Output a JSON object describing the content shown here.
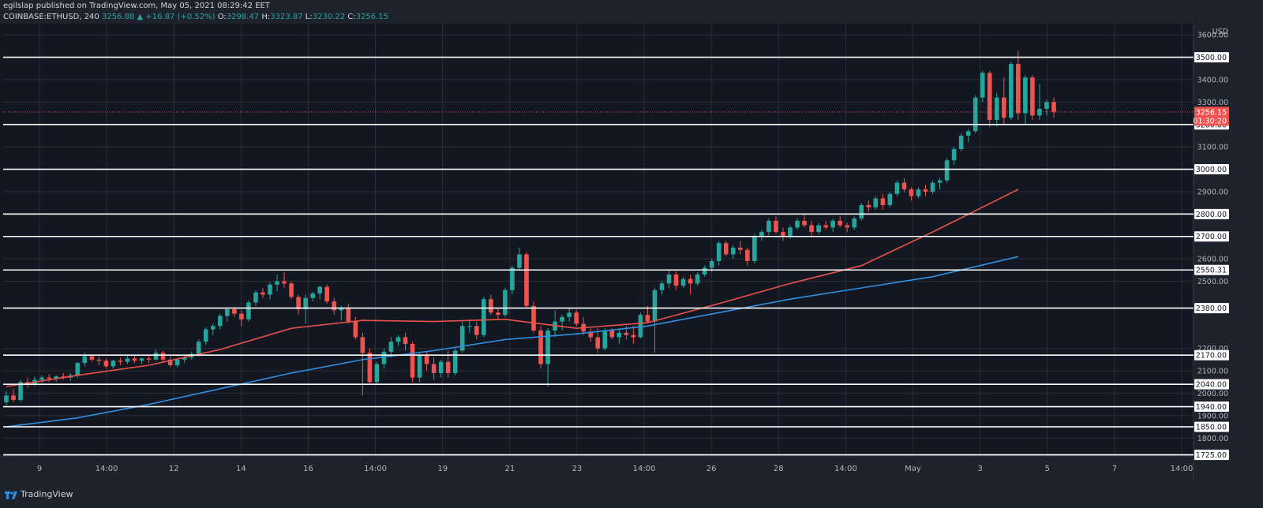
{
  "header": {
    "published": "egilslap published on TradingView.com, May 05, 2021 08:29:42 EET",
    "symbol": "COINBASE:ETHUSD, 240",
    "last": "3256.88",
    "change_arrow": "▲",
    "change": "+16.87 (+0.52%)",
    "o_label": "O:",
    "o_value": "3298.47",
    "h_label": "H:",
    "h_value": "3323.87",
    "l_label": "L:",
    "l_value": "3230.22",
    "c_label": "C:",
    "c_value": "3256.15"
  },
  "footer": {
    "brand": "TradingView",
    "icon": "tradingview-logo-icon"
  },
  "colors": {
    "background": "#131722",
    "up": "#26a69a",
    "down": "#ef5350",
    "ema_red": "#e8524a",
    "ema_blue": "#2f8fe0",
    "level_line": "#ffffff",
    "grid": "#2a2e39"
  },
  "chart_data": {
    "type": "candlestick",
    "symbol": "COINBASE:ETHUSD",
    "interval": "240",
    "y_unit": "USD",
    "ylim": [
      1720,
      3650
    ],
    "x_ticks": [
      "9",
      "14:00",
      "12",
      "14",
      "16",
      "14:00",
      "19",
      "21",
      "23",
      "14:00",
      "26",
      "28",
      "14:00",
      "May",
      "3",
      "5",
      "7",
      "14:00"
    ],
    "y_axis_labels": [
      "3600.00",
      "3400.00",
      "3300.00",
      "3100.00",
      "2900.00",
      "2600.00",
      "2500.00",
      "2200.00",
      "2100.00",
      "2000.00",
      "1900.00",
      "1800.00"
    ],
    "horizontal_levels": [
      3500.0,
      3200.0,
      3000.0,
      2800.0,
      2700.0,
      2550.31,
      2380.0,
      2170.0,
      2040.0,
      1940.0,
      1850.0,
      1725.0
    ],
    "current_price": "3256.15",
    "countdown": "01:30:20",
    "partial_top_label": "USD",
    "candles": [
      [
        1960,
        2010,
        1945,
        1990
      ],
      [
        1990,
        2020,
        1960,
        1970
      ],
      [
        1970,
        2060,
        1960,
        2050
      ],
      [
        2050,
        2070,
        2025,
        2040
      ],
      [
        2040,
        2075,
        2030,
        2060
      ],
      [
        2060,
        2080,
        2045,
        2070
      ],
      [
        2070,
        2085,
        2050,
        2065
      ],
      [
        2065,
        2080,
        2050,
        2075
      ],
      [
        2075,
        2090,
        2060,
        2070
      ],
      [
        2070,
        2090,
        2055,
        2080
      ],
      [
        2080,
        2140,
        2070,
        2135
      ],
      [
        2135,
        2180,
        2120,
        2165
      ],
      [
        2165,
        2175,
        2140,
        2150
      ],
      [
        2150,
        2165,
        2125,
        2145
      ],
      [
        2145,
        2155,
        2110,
        2120
      ],
      [
        2120,
        2150,
        2110,
        2145
      ],
      [
        2145,
        2160,
        2125,
        2140
      ],
      [
        2140,
        2165,
        2130,
        2155
      ],
      [
        2155,
        2165,
        2135,
        2145
      ],
      [
        2145,
        2160,
        2130,
        2155
      ],
      [
        2155,
        2170,
        2135,
        2150
      ],
      [
        2150,
        2195,
        2145,
        2180
      ],
      [
        2180,
        2190,
        2140,
        2150
      ],
      [
        2150,
        2165,
        2115,
        2125
      ],
      [
        2125,
        2155,
        2115,
        2150
      ],
      [
        2150,
        2170,
        2135,
        2160
      ],
      [
        2160,
        2185,
        2150,
        2175
      ],
      [
        2175,
        2240,
        2165,
        2230
      ],
      [
        2230,
        2295,
        2215,
        2285
      ],
      [
        2285,
        2310,
        2260,
        2300
      ],
      [
        2300,
        2355,
        2285,
        2345
      ],
      [
        2345,
        2380,
        2320,
        2375
      ],
      [
        2375,
        2385,
        2340,
        2355
      ],
      [
        2355,
        2370,
        2300,
        2330
      ],
      [
        2330,
        2415,
        2320,
        2405
      ],
      [
        2405,
        2460,
        2390,
        2450
      ],
      [
        2450,
        2470,
        2425,
        2440
      ],
      [
        2440,
        2495,
        2420,
        2485
      ],
      [
        2485,
        2530,
        2455,
        2500
      ],
      [
        2500,
        2540,
        2470,
        2490
      ],
      [
        2490,
        2500,
        2420,
        2430
      ],
      [
        2430,
        2440,
        2350,
        2375
      ],
      [
        2375,
        2440,
        2310,
        2425
      ],
      [
        2425,
        2455,
        2410,
        2445
      ],
      [
        2445,
        2480,
        2420,
        2475
      ],
      [
        2475,
        2485,
        2400,
        2410
      ],
      [
        2410,
        2425,
        2350,
        2370
      ],
      [
        2370,
        2390,
        2325,
        2380
      ],
      [
        2380,
        2400,
        2310,
        2320
      ],
      [
        2320,
        2340,
        2240,
        2250
      ],
      [
        2250,
        2270,
        1990,
        2180
      ],
      [
        2180,
        2200,
        2040,
        2050
      ],
      [
        2050,
        2140,
        2040,
        2130
      ],
      [
        2130,
        2200,
        2110,
        2185
      ],
      [
        2185,
        2250,
        2160,
        2230
      ],
      [
        2230,
        2260,
        2210,
        2250
      ],
      [
        2250,
        2270,
        2190,
        2220
      ],
      [
        2220,
        2230,
        2050,
        2070
      ],
      [
        2070,
        2180,
        2050,
        2170
      ],
      [
        2170,
        2185,
        2100,
        2130
      ],
      [
        2130,
        2160,
        2060,
        2090
      ],
      [
        2090,
        2150,
        2070,
        2140
      ],
      [
        2140,
        2190,
        2070,
        2090
      ],
      [
        2090,
        2200,
        2080,
        2190
      ],
      [
        2190,
        2320,
        2180,
        2300
      ],
      [
        2300,
        2330,
        2270,
        2300
      ],
      [
        2300,
        2320,
        2240,
        2260
      ],
      [
        2260,
        2430,
        2250,
        2420
      ],
      [
        2420,
        2440,
        2350,
        2360
      ],
      [
        2360,
        2380,
        2330,
        2350
      ],
      [
        2350,
        2470,
        2340,
        2460
      ],
      [
        2460,
        2570,
        2440,
        2560
      ],
      [
        2560,
        2650,
        2550,
        2620
      ],
      [
        2620,
        2630,
        2380,
        2390
      ],
      [
        2390,
        2410,
        2270,
        2280
      ],
      [
        2280,
        2300,
        2110,
        2130
      ],
      [
        2130,
        2290,
        2030,
        2280
      ],
      [
        2280,
        2370,
        2250,
        2320
      ],
      [
        2320,
        2350,
        2280,
        2340
      ],
      [
        2340,
        2380,
        2320,
        2360
      ],
      [
        2360,
        2370,
        2300,
        2310
      ],
      [
        2310,
        2340,
        2260,
        2275
      ],
      [
        2275,
        2290,
        2230,
        2250
      ],
      [
        2250,
        2290,
        2180,
        2200
      ],
      [
        2200,
        2290,
        2190,
        2280
      ],
      [
        2280,
        2290,
        2240,
        2250
      ],
      [
        2250,
        2290,
        2220,
        2270
      ],
      [
        2270,
        2300,
        2240,
        2260
      ],
      [
        2260,
        2300,
        2220,
        2250
      ],
      [
        2250,
        2360,
        2245,
        2350
      ],
      [
        2350,
        2390,
        2310,
        2320
      ],
      [
        2320,
        2470,
        2180,
        2460
      ],
      [
        2460,
        2500,
        2440,
        2490
      ],
      [
        2490,
        2550,
        2470,
        2530
      ],
      [
        2530,
        2545,
        2460,
        2480
      ],
      [
        2480,
        2520,
        2470,
        2510
      ],
      [
        2510,
        2530,
        2440,
        2490
      ],
      [
        2490,
        2540,
        2480,
        2530
      ],
      [
        2530,
        2570,
        2520,
        2560
      ],
      [
        2560,
        2600,
        2540,
        2590
      ],
      [
        2590,
        2680,
        2570,
        2670
      ],
      [
        2670,
        2680,
        2610,
        2620
      ],
      [
        2620,
        2660,
        2600,
        2650
      ],
      [
        2650,
        2680,
        2620,
        2640
      ],
      [
        2640,
        2650,
        2570,
        2590
      ],
      [
        2590,
        2710,
        2580,
        2700
      ],
      [
        2700,
        2730,
        2680,
        2720
      ],
      [
        2720,
        2780,
        2700,
        2770
      ],
      [
        2770,
        2790,
        2710,
        2720
      ],
      [
        2720,
        2740,
        2680,
        2700
      ],
      [
        2700,
        2750,
        2690,
        2740
      ],
      [
        2740,
        2780,
        2730,
        2770
      ],
      [
        2770,
        2800,
        2740,
        2750
      ],
      [
        2750,
        2770,
        2700,
        2720
      ],
      [
        2720,
        2760,
        2710,
        2750
      ],
      [
        2750,
        2770,
        2730,
        2740
      ],
      [
        2740,
        2780,
        2720,
        2770
      ],
      [
        2770,
        2790,
        2740,
        2750
      ],
      [
        2750,
        2760,
        2720,
        2740
      ],
      [
        2740,
        2790,
        2730,
        2780
      ],
      [
        2780,
        2850,
        2770,
        2840
      ],
      [
        2840,
        2860,
        2810,
        2830
      ],
      [
        2830,
        2880,
        2820,
        2870
      ],
      [
        2870,
        2890,
        2820,
        2840
      ],
      [
        2840,
        2900,
        2830,
        2890
      ],
      [
        2890,
        2950,
        2880,
        2940
      ],
      [
        2940,
        2960,
        2900,
        2910
      ],
      [
        2910,
        2920,
        2860,
        2880
      ],
      [
        2880,
        2920,
        2870,
        2910
      ],
      [
        2910,
        2930,
        2880,
        2900
      ],
      [
        2900,
        2950,
        2890,
        2940
      ],
      [
        2940,
        2960,
        2910,
        2950
      ],
      [
        2950,
        3050,
        2940,
        3040
      ],
      [
        3040,
        3100,
        3020,
        3090
      ],
      [
        3090,
        3160,
        3080,
        3150
      ],
      [
        3150,
        3180,
        3120,
        3170
      ],
      [
        3170,
        3330,
        3160,
        3320
      ],
      [
        3320,
        3440,
        3300,
        3430
      ],
      [
        3430,
        3440,
        3190,
        3220
      ],
      [
        3220,
        3340,
        3190,
        3320
      ],
      [
        3320,
        3410,
        3200,
        3230
      ],
      [
        3230,
        3480,
        3220,
        3470
      ],
      [
        3470,
        3530,
        3220,
        3250
      ],
      [
        3250,
        3420,
        3200,
        3410
      ],
      [
        3410,
        3420,
        3220,
        3240
      ],
      [
        3240,
        3380,
        3220,
        3270
      ],
      [
        3270,
        3310,
        3240,
        3300
      ],
      [
        3300,
        3320,
        3230,
        3256
      ]
    ],
    "series": [
      {
        "color": "#e8524a",
        "x_index": [
          0,
          10,
          20,
          30,
          40,
          50,
          60,
          70,
          80,
          90,
          100,
          110,
          120,
          130,
          142
        ],
        "values": [
          2030,
          2080,
          2125,
          2195,
          2290,
          2325,
          2320,
          2330,
          2290,
          2315,
          2400,
          2490,
          2570,
          2720,
          2910
        ]
      },
      {
        "color": "#2f8fe0",
        "x_index": [
          0,
          10,
          20,
          30,
          40,
          50,
          60,
          70,
          80,
          90,
          100,
          110,
          120,
          130,
          142
        ],
        "values": [
          1850,
          1890,
          1950,
          2020,
          2090,
          2150,
          2190,
          2240,
          2265,
          2300,
          2360,
          2420,
          2470,
          2520,
          2610
        ]
      }
    ]
  }
}
